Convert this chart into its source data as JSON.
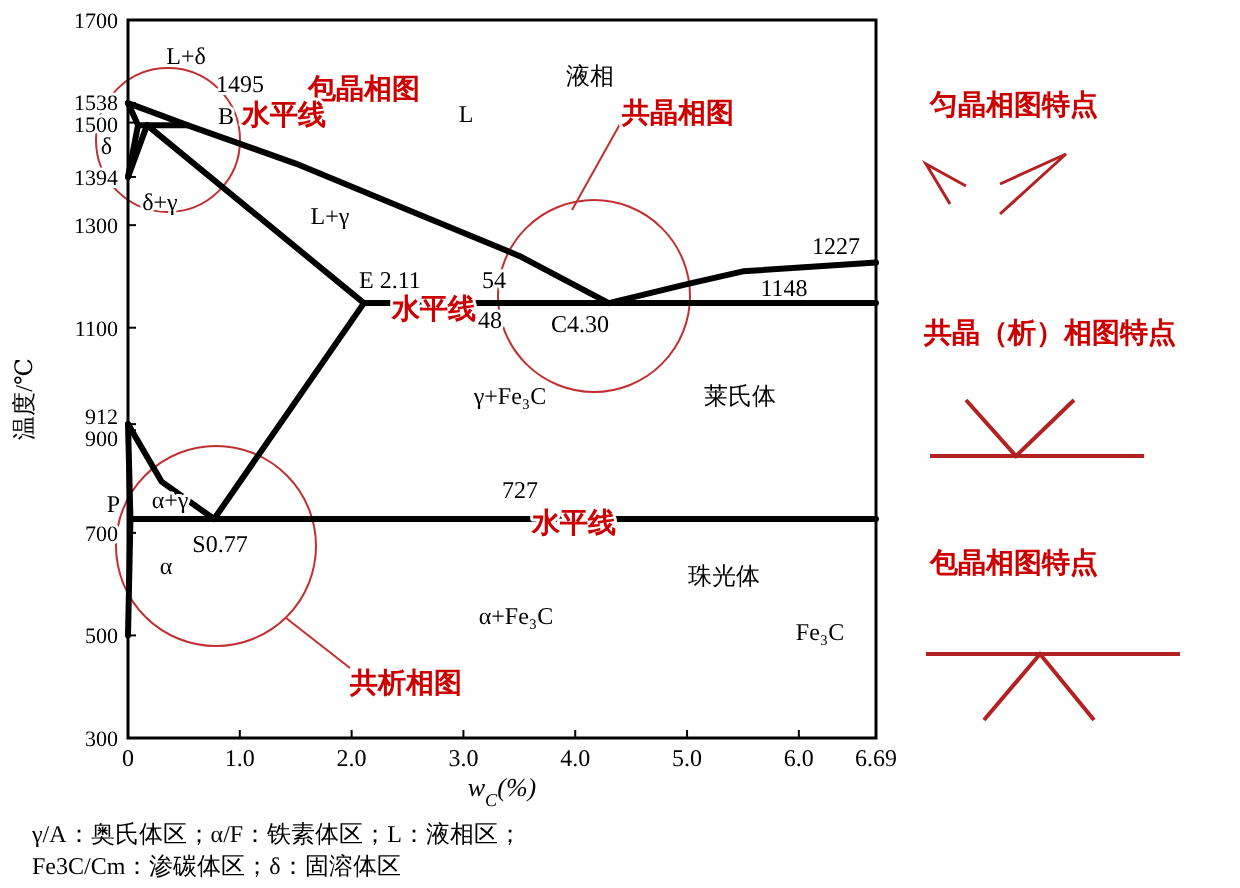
{
  "chart_data": {
    "type": "line",
    "xlabel": "w$_{C}$(%)",
    "ylabel": "温度/℃",
    "xlim": [
      0,
      6.69
    ],
    "ylim": [
      300,
      1700
    ],
    "xticks": [
      {
        "value": 0,
        "label": "0"
      },
      {
        "value": 1,
        "label": "1.0"
      },
      {
        "value": 2,
        "label": "2.0"
      },
      {
        "value": 3,
        "label": "3.0"
      },
      {
        "value": 4,
        "label": "4.0"
      },
      {
        "value": 5,
        "label": "5.0"
      },
      {
        "value": 6,
        "label": "6.0"
      },
      6.69
    ],
    "yticks": [
      300,
      500,
      700,
      900,
      912,
      1100,
      1300,
      1394,
      1500,
      1538,
      1700
    ],
    "grid": false,
    "series": [
      {
        "color": "#000000",
        "x": [
          0,
          0.53,
          1.5,
          2.5,
          3.5,
          4.3
        ],
        "values": [
          1538,
          1495,
          1420,
          1330,
          1240,
          1148
        ]
      },
      {
        "color": "#000000",
        "x": [
          4.3,
          5.0,
          5.5,
          6.69
        ],
        "values": [
          1148,
          1185,
          1210,
          1227
        ]
      },
      {
        "color": "#000000",
        "x": [
          0,
          0.09
        ],
        "values": [
          1538,
          1495
        ]
      },
      {
        "color": "#000000",
        "x": [
          0.09,
          0.53
        ],
        "values": [
          1495,
          1495
        ]
      },
      {
        "color": "#000000",
        "x": [
          0.09,
          0
        ],
        "values": [
          1495,
          1394
        ]
      },
      {
        "color": "#000000",
        "x": [
          0.17,
          0
        ],
        "values": [
          1495,
          1394
        ]
      },
      {
        "color": "#000000",
        "x": [
          0.17,
          2.11
        ],
        "values": [
          1495,
          1148
        ]
      },
      {
        "color": "#000000",
        "x": [
          2.11,
          6.69
        ],
        "values": [
          1148,
          1148
        ]
      },
      {
        "color": "#000000",
        "x": [
          2.11,
          0.77
        ],
        "values": [
          1148,
          727
        ]
      },
      {
        "color": "#000000",
        "x": [
          0,
          0.3,
          0.77
        ],
        "values": [
          912,
          800,
          727
        ]
      },
      {
        "color": "#000000",
        "x": [
          0,
          0.0218,
          0
        ],
        "values": [
          912,
          727,
          500
        ]
      },
      {
        "color": "#000000",
        "x": [
          0.0218,
          6.69
        ],
        "values": [
          727,
          727
        ]
      }
    ],
    "annotations": [
      "L+δ",
      "1495",
      "B",
      "δ",
      "δ+γ",
      "L",
      "液相",
      "L+γ",
      "E 2.11",
      "54",
      "48",
      "C4.30",
      "1148",
      "1227",
      "γ+Fe₃C",
      "莱氏体",
      "727",
      "P",
      "α+γ",
      "S0.77",
      "α",
      "α+Fe₃C",
      "珠光体",
      "Fe₃C",
      "包晶相图",
      "水平线",
      "共晶相图",
      "水平线",
      "水平线",
      "共析相图",
      "匀晶相图特点",
      "共晶（析）相图特点",
      "包晶相图特点",
      "γ/A：奥氏体区；α/F：铁素体区；L：液相区；",
      "Fe3C/Cm：渗碳体区；δ：固溶体区"
    ]
  }
}
